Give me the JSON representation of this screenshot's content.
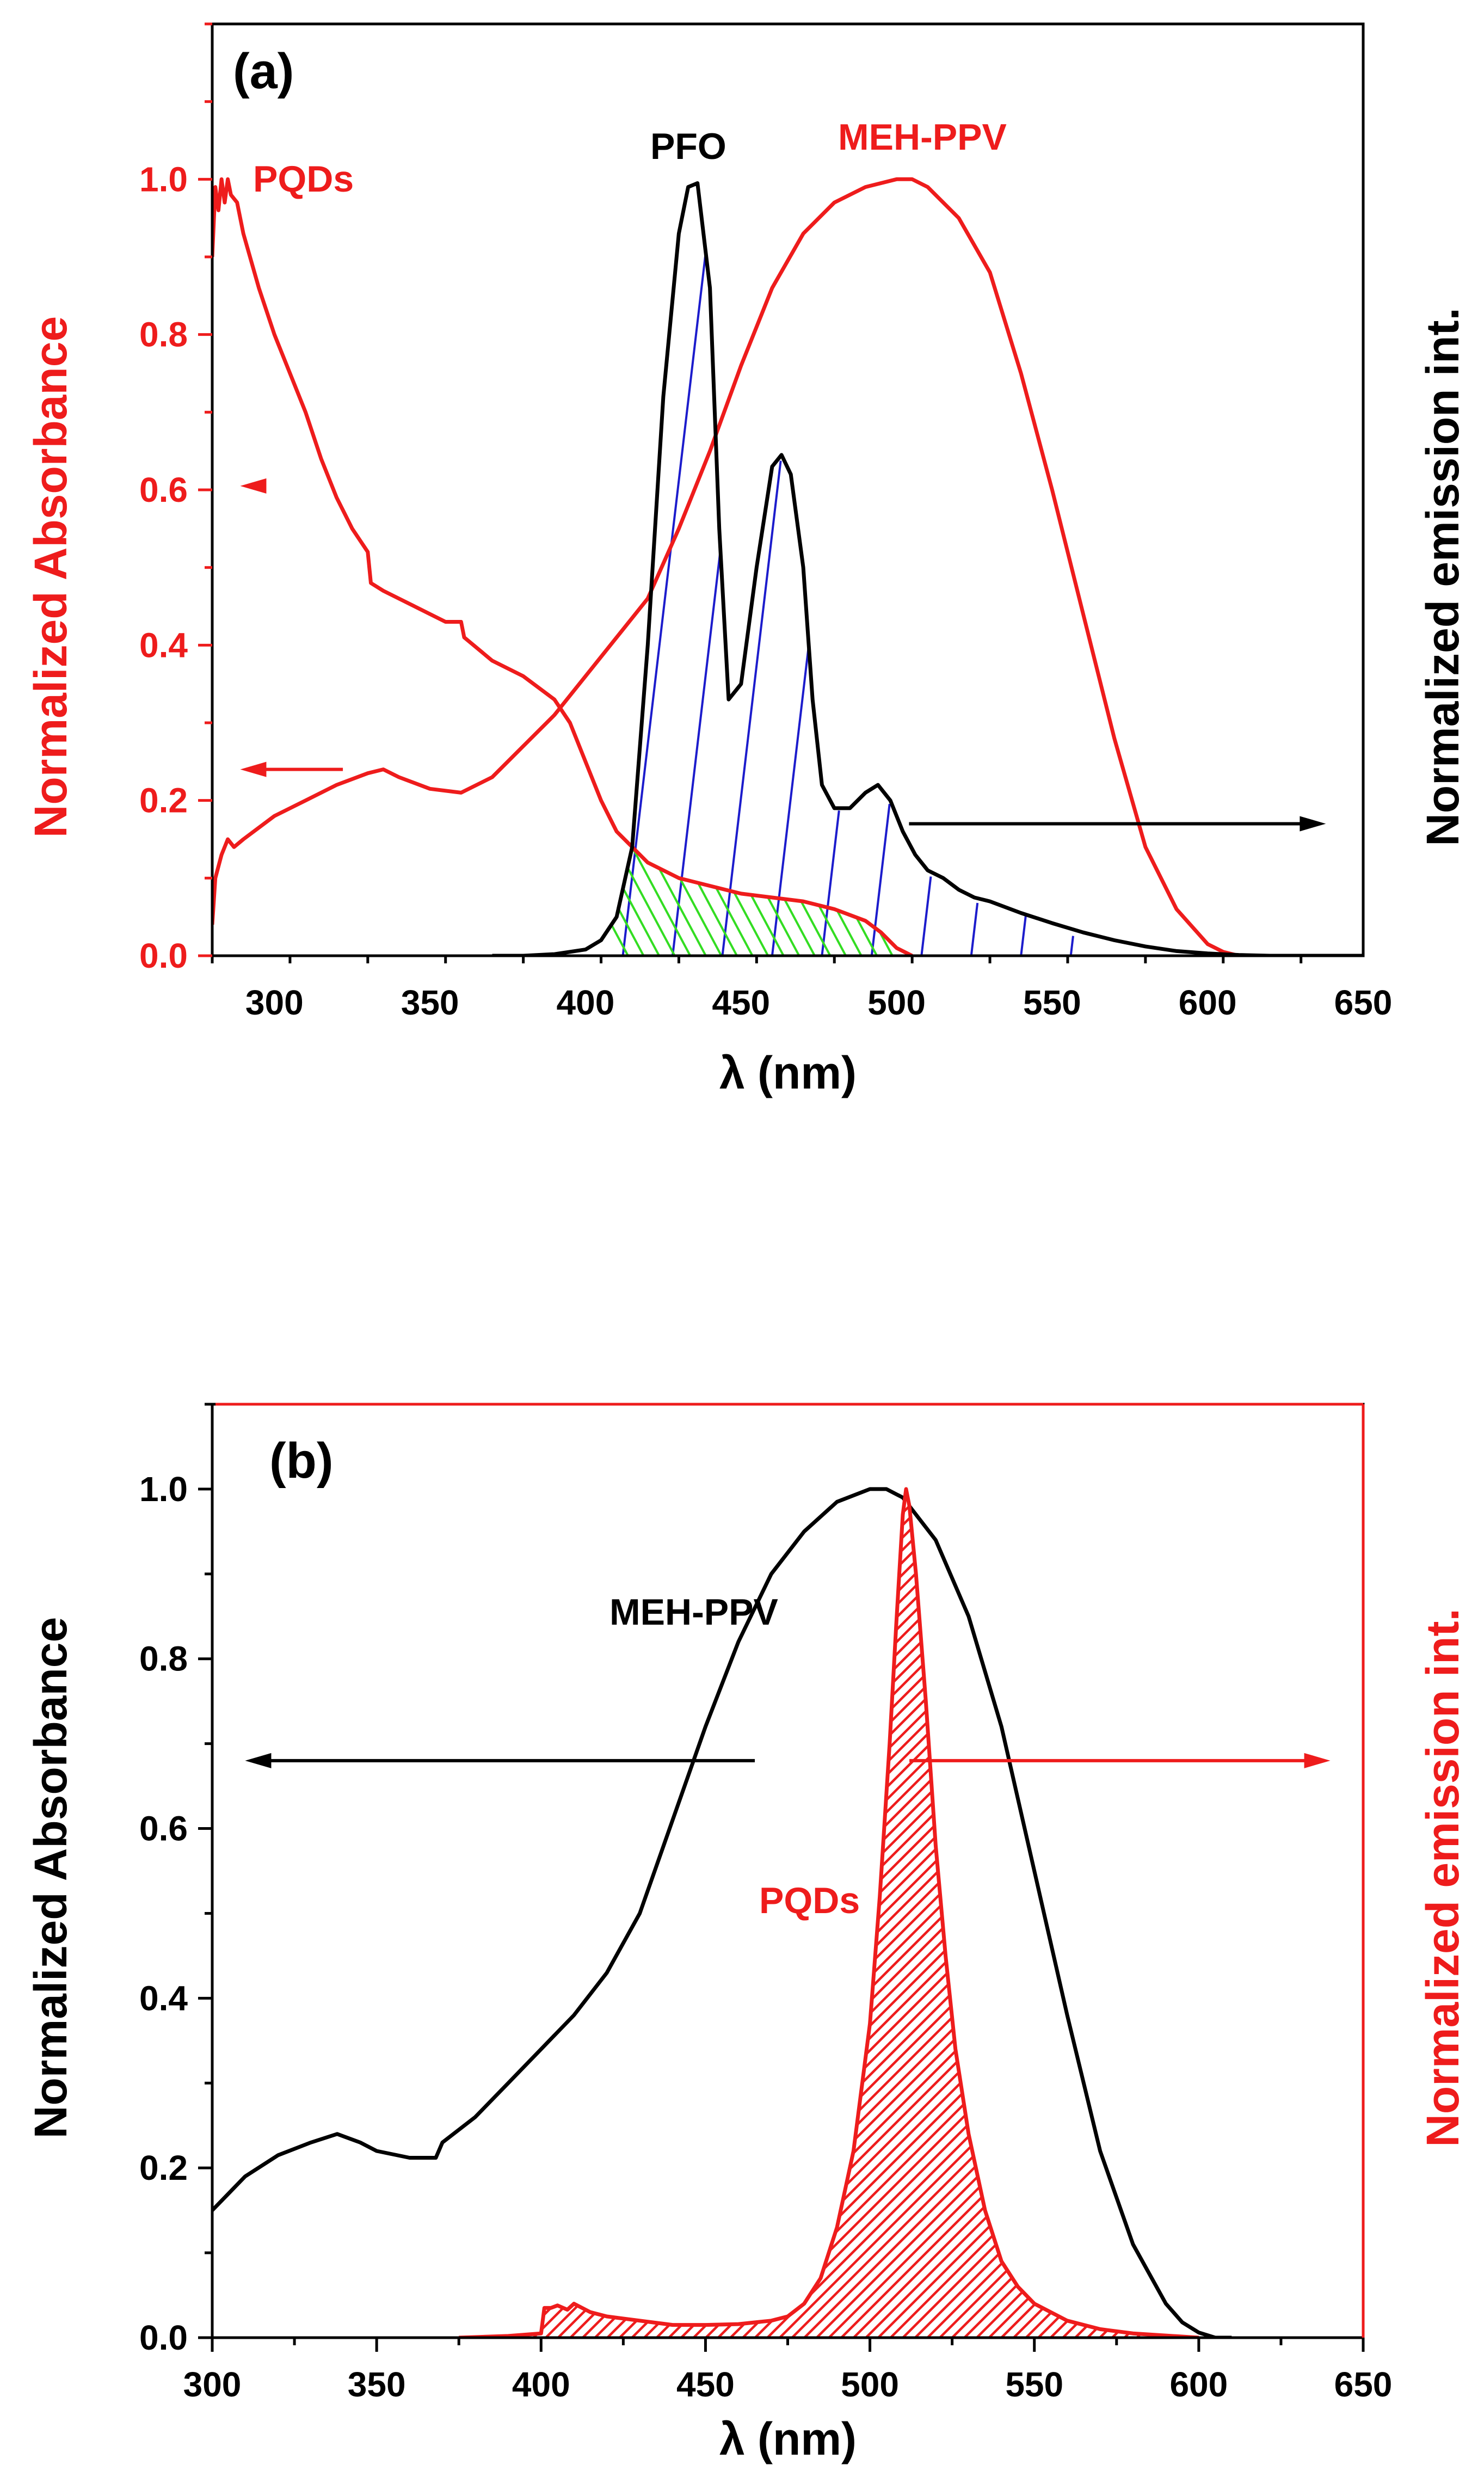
{
  "colors": {
    "red": "#ee1c1c",
    "black": "#000000",
    "blue": "#1c1ccc",
    "green": "#33dd22"
  },
  "chart_data": [
    {
      "id": "a",
      "type": "line",
      "panel_label": "(a)",
      "xlabel": "λ (nm)",
      "ylabel_left": "Normalized Absorbance",
      "ylabel_right": "Normalized emission int.",
      "xlim": [
        280,
        650
      ],
      "ylim": [
        0,
        1.2
      ],
      "xticks": [
        300,
        350,
        400,
        450,
        500,
        550,
        600,
        650
      ],
      "xtick_labels": [
        "300",
        "350",
        "400",
        "450",
        "500",
        "550",
        "600",
        "650"
      ],
      "yticks": [
        0,
        0.2,
        0.4,
        0.6,
        0.8,
        1.0
      ],
      "ytick_labels": [
        "0.0",
        "0.2",
        "0.4",
        "0.6",
        "0.8",
        "1.0"
      ],
      "annotations": [
        "PQDs",
        "PFO",
        "MEH-PPV"
      ],
      "arrows": [
        {
          "from": [
            322,
            0.24
          ],
          "to": [
            289,
            0.24
          ],
          "direction": "left",
          "color": "red"
        },
        {
          "from": [
            297,
            0.605
          ],
          "to": [
            289,
            0.605
          ],
          "direction": "left",
          "color": "red"
        },
        {
          "from": [
            504,
            0.17
          ],
          "to": [
            638,
            0.17
          ],
          "direction": "right",
          "color": "black"
        }
      ],
      "series": [
        {
          "name": "PQDs absorbance",
          "color": "red",
          "axis": "left",
          "x": [
            280,
            281,
            282,
            283,
            284,
            285,
            286,
            288,
            290,
            295,
            300,
            305,
            310,
            315,
            320,
            325,
            330,
            331,
            335,
            340,
            345,
            350,
            355,
            360,
            361,
            370,
            380,
            390,
            395,
            400,
            405,
            410,
            420,
            430,
            440,
            450,
            460,
            470,
            480,
            490,
            495,
            500,
            505
          ],
          "y": [
            0.9,
            0.99,
            0.96,
            1.0,
            0.97,
            1.0,
            0.98,
            0.97,
            0.93,
            0.86,
            0.8,
            0.75,
            0.7,
            0.64,
            0.59,
            0.55,
            0.52,
            0.48,
            0.47,
            0.46,
            0.45,
            0.44,
            0.43,
            0.43,
            0.41,
            0.38,
            0.36,
            0.33,
            0.3,
            0.25,
            0.2,
            0.16,
            0.12,
            0.1,
            0.09,
            0.08,
            0.075,
            0.07,
            0.06,
            0.045,
            0.03,
            0.01,
            0.0
          ]
        },
        {
          "name": "MEH-PPV absorbance",
          "color": "red",
          "axis": "left",
          "x": [
            280,
            281,
            283,
            285,
            287,
            290,
            300,
            310,
            320,
            330,
            335,
            340,
            350,
            360,
            370,
            380,
            390,
            400,
            410,
            420,
            430,
            440,
            450,
            460,
            470,
            480,
            490,
            500,
            505,
            510,
            520,
            530,
            540,
            550,
            560,
            570,
            580,
            590,
            600,
            605,
            610,
            620
          ],
          "y": [
            0.04,
            0.1,
            0.13,
            0.15,
            0.14,
            0.15,
            0.18,
            0.2,
            0.22,
            0.235,
            0.24,
            0.23,
            0.215,
            0.21,
            0.23,
            0.27,
            0.31,
            0.36,
            0.41,
            0.46,
            0.55,
            0.65,
            0.76,
            0.86,
            0.93,
            0.97,
            0.99,
            1.0,
            1.0,
            0.99,
            0.95,
            0.88,
            0.75,
            0.6,
            0.44,
            0.28,
            0.14,
            0.06,
            0.015,
            0.005,
            0.0,
            0.0
          ]
        },
        {
          "name": "PFO emission",
          "color": "black",
          "axis": "right",
          "x": [
            370,
            380,
            390,
            400,
            405,
            410,
            415,
            420,
            425,
            430,
            433,
            436,
            440,
            443,
            446,
            450,
            455,
            460,
            463,
            466,
            470,
            473,
            476,
            480,
            485,
            490,
            494,
            498,
            502,
            506,
            510,
            515,
            520,
            525,
            530,
            540,
            550,
            560,
            570,
            580,
            590,
            600,
            610,
            620,
            630,
            650
          ],
          "y": [
            0,
            0,
            0.002,
            0.008,
            0.02,
            0.05,
            0.14,
            0.4,
            0.72,
            0.93,
            0.99,
            0.995,
            0.86,
            0.55,
            0.33,
            0.35,
            0.5,
            0.63,
            0.645,
            0.62,
            0.5,
            0.33,
            0.22,
            0.19,
            0.19,
            0.21,
            0.22,
            0.2,
            0.16,
            0.13,
            0.11,
            0.1,
            0.085,
            0.075,
            0.07,
            0.055,
            0.042,
            0.03,
            0.02,
            0.012,
            0.006,
            0.003,
            0.001,
            0,
            0,
            0
          ]
        }
      ]
    },
    {
      "id": "b",
      "type": "line",
      "panel_label": "(b)",
      "xlabel": "λ (nm)",
      "ylabel_left": "Normalized Absorbance",
      "ylabel_right": "Normalized emission int.",
      "xlim": [
        300,
        650
      ],
      "ylim": [
        0,
        1.1
      ],
      "xticks": [
        300,
        350,
        400,
        450,
        500,
        550,
        600,
        650
      ],
      "xtick_labels": [
        "300",
        "350",
        "400",
        "450",
        "500",
        "550",
        "600",
        "650"
      ],
      "yticks": [
        0,
        0.2,
        0.4,
        0.6,
        0.8,
        1.0
      ],
      "ytick_labels": [
        "0.0",
        "0.2",
        "0.4",
        "0.6",
        "0.8",
        "1.0"
      ],
      "annotations": [
        "MEH-PPV",
        "PQDs"
      ],
      "arrows": [
        {
          "from": [
            465,
            0.68
          ],
          "to": [
            310,
            0.68
          ],
          "direction": "left",
          "color": "black"
        },
        {
          "from": [
            512,
            0.68
          ],
          "to": [
            640,
            0.68
          ],
          "direction": "right",
          "color": "red"
        }
      ],
      "series": [
        {
          "name": "MEH-PPV absorbance",
          "color": "black",
          "axis": "left",
          "x": [
            300,
            305,
            310,
            320,
            330,
            338,
            345,
            350,
            360,
            368,
            370,
            380,
            390,
            400,
            410,
            420,
            430,
            440,
            450,
            460,
            470,
            480,
            490,
            500,
            505,
            510,
            520,
            530,
            540,
            550,
            560,
            570,
            580,
            590,
            595,
            600,
            605,
            610
          ],
          "y": [
            0.15,
            0.17,
            0.19,
            0.215,
            0.23,
            0.24,
            0.23,
            0.22,
            0.212,
            0.212,
            0.23,
            0.26,
            0.3,
            0.34,
            0.38,
            0.43,
            0.5,
            0.61,
            0.72,
            0.82,
            0.9,
            0.95,
            0.985,
            1.0,
            1.0,
            0.99,
            0.94,
            0.85,
            0.72,
            0.55,
            0.38,
            0.22,
            0.11,
            0.04,
            0.018,
            0.006,
            0.0,
            0.0
          ]
        },
        {
          "name": "PQDs emission",
          "color": "red",
          "axis": "right",
          "filled": true,
          "x": [
            375,
            390,
            400,
            401,
            403,
            405,
            408,
            410,
            415,
            420,
            430,
            440,
            450,
            460,
            470,
            475,
            480,
            485,
            490,
            495,
            500,
            503,
            506,
            508,
            510,
            511,
            512,
            514,
            517,
            520,
            523,
            526,
            530,
            535,
            540,
            545,
            550,
            560,
            570,
            580,
            600
          ],
          "y": [
            0,
            0.002,
            0.005,
            0.035,
            0.035,
            0.038,
            0.033,
            0.04,
            0.03,
            0.025,
            0.02,
            0.015,
            0.015,
            0.016,
            0.02,
            0.025,
            0.04,
            0.07,
            0.13,
            0.22,
            0.37,
            0.52,
            0.7,
            0.84,
            0.97,
            1.0,
            0.98,
            0.9,
            0.75,
            0.58,
            0.45,
            0.34,
            0.24,
            0.15,
            0.09,
            0.06,
            0.04,
            0.02,
            0.01,
            0.005,
            0
          ]
        }
      ]
    }
  ]
}
